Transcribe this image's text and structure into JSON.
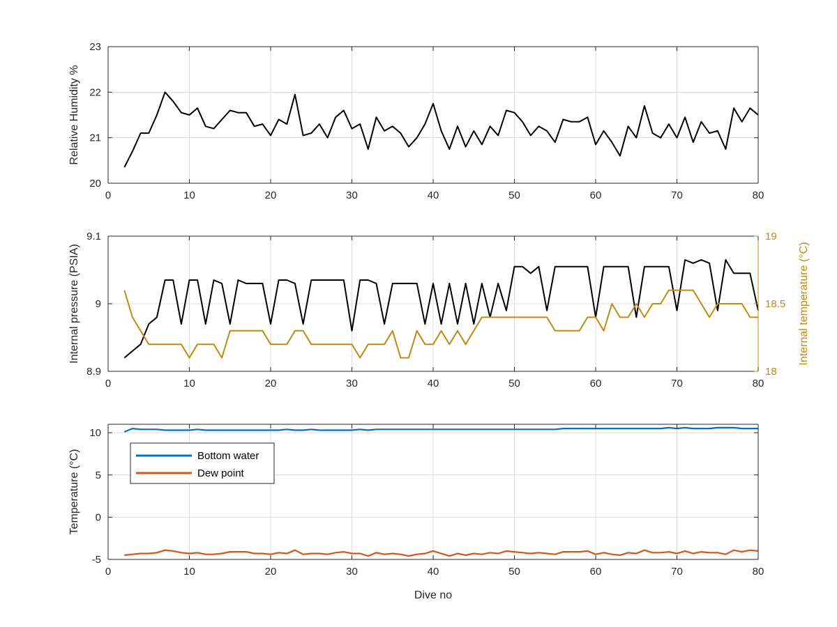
{
  "colors": {
    "axes": "#262626",
    "grid": "#dcdcdc",
    "black_series": "#000000",
    "internal_temperature": "#c08a10",
    "bottom_water": "#0072bd",
    "dew_point": "#d95319"
  },
  "chart_data": [
    {
      "type": "line",
      "panel": "humidity",
      "xlabel": "",
      "ylabel": "Relative Humidity %",
      "xlim": [
        0,
        80
      ],
      "ylim": [
        20,
        23
      ],
      "xticks": [
        0,
        10,
        20,
        30,
        40,
        50,
        60,
        70,
        80
      ],
      "yticks": [
        20,
        21,
        22,
        23
      ],
      "grid": true,
      "series": [
        {
          "color": "#000000",
          "x": [
            2,
            3,
            4,
            5,
            6,
            7,
            8,
            9,
            10,
            11,
            12,
            13,
            14,
            15,
            16,
            17,
            18,
            19,
            20,
            21,
            22,
            23,
            24,
            25,
            26,
            27,
            28,
            29,
            30,
            31,
            32,
            33,
            34,
            35,
            36,
            37,
            38,
            39,
            40,
            41,
            42,
            43,
            44,
            45,
            46,
            47,
            48,
            49,
            50,
            51,
            52,
            53,
            54,
            55,
            56,
            57,
            58,
            59,
            60,
            61,
            62,
            63,
            64,
            65,
            66,
            67,
            68,
            69,
            70,
            71,
            72,
            73,
            74,
            75,
            76,
            77,
            78,
            79,
            80
          ],
          "y": [
            20.35,
            20.7,
            21.1,
            21.1,
            21.5,
            22.0,
            21.8,
            21.55,
            21.5,
            21.65,
            21.25,
            21.2,
            21.4,
            21.6,
            21.55,
            21.55,
            21.25,
            21.3,
            21.05,
            21.4,
            21.3,
            21.95,
            21.05,
            21.1,
            21.3,
            21.0,
            21.45,
            21.6,
            21.2,
            21.3,
            20.75,
            21.45,
            21.15,
            21.25,
            21.1,
            20.8,
            21.0,
            21.3,
            21.75,
            21.15,
            20.75,
            21.25,
            20.8,
            21.15,
            20.85,
            21.25,
            21.05,
            21.6,
            21.55,
            21.35,
            21.05,
            21.25,
            21.15,
            20.9,
            21.4,
            21.35,
            21.35,
            21.45,
            20.85,
            21.15,
            20.9,
            20.6,
            21.25,
            21.0,
            21.7,
            21.1,
            21.0,
            21.3,
            21.0,
            21.45,
            20.9,
            21.35,
            21.1,
            21.15,
            20.75,
            21.65,
            21.35,
            21.65,
            21.5
          ]
        }
      ]
    },
    {
      "type": "line",
      "panel": "pressure",
      "xlabel": "",
      "ylabel": "Internal pressure (PSIA)",
      "y2label": "Internal temperature (°C)",
      "xlim": [
        0,
        80
      ],
      "ylim": [
        8.9,
        9.1
      ],
      "y2lim": [
        18,
        19
      ],
      "xticks": [
        0,
        10,
        20,
        30,
        40,
        50,
        60,
        70,
        80
      ],
      "yticks": [
        8.9,
        9,
        9.1
      ],
      "ytick_labels": [
        "8.9",
        "9",
        "9.1"
      ],
      "y2ticks": [
        18,
        18.5,
        19
      ],
      "y2tick_labels": [
        "18",
        "18.5",
        "19"
      ],
      "grid": true,
      "series": [
        {
          "color": "#000000",
          "axis": "left",
          "x": [
            2,
            3,
            4,
            5,
            6,
            7,
            8,
            9,
            10,
            11,
            12,
            13,
            14,
            15,
            16,
            17,
            18,
            19,
            20,
            21,
            22,
            23,
            24,
            25,
            26,
            27,
            28,
            29,
            30,
            31,
            32,
            33,
            34,
            35,
            36,
            37,
            38,
            39,
            40,
            41,
            42,
            43,
            44,
            45,
            46,
            47,
            48,
            49,
            50,
            51,
            52,
            53,
            54,
            55,
            56,
            57,
            58,
            59,
            60,
            61,
            62,
            63,
            64,
            65,
            66,
            67,
            68,
            69,
            70,
            71,
            72,
            73,
            74,
            75,
            76,
            77,
            78,
            79,
            80
          ],
          "y": [
            8.92,
            8.93,
            8.94,
            8.97,
            8.98,
            9.035,
            9.035,
            8.97,
            9.035,
            9.035,
            8.97,
            9.035,
            9.03,
            8.97,
            9.035,
            9.03,
            9.03,
            9.03,
            8.97,
            9.035,
            9.035,
            9.03,
            8.97,
            9.035,
            9.035,
            9.035,
            9.035,
            9.035,
            8.96,
            9.035,
            9.035,
            9.03,
            8.97,
            9.03,
            9.03,
            9.03,
            9.03,
            8.97,
            9.03,
            8.97,
            9.03,
            8.97,
            9.03,
            8.97,
            9.03,
            8.98,
            9.03,
            8.99,
            9.055,
            9.055,
            9.045,
            9.055,
            8.99,
            9.055,
            9.055,
            9.055,
            9.055,
            9.055,
            8.98,
            9.055,
            9.055,
            9.055,
            9.055,
            8.98,
            9.055,
            9.055,
            9.055,
            9.055,
            8.99,
            9.065,
            9.06,
            9.065,
            9.06,
            8.99,
            9.065,
            9.045,
            9.045,
            9.045,
            8.99
          ]
        },
        {
          "color": "#c08a10",
          "axis": "right",
          "x": [
            2,
            3,
            4,
            5,
            6,
            7,
            8,
            9,
            10,
            11,
            12,
            13,
            14,
            15,
            16,
            17,
            18,
            19,
            20,
            21,
            22,
            23,
            24,
            25,
            26,
            27,
            28,
            29,
            30,
            31,
            32,
            33,
            34,
            35,
            36,
            37,
            38,
            39,
            40,
            41,
            42,
            43,
            44,
            45,
            46,
            47,
            48,
            49,
            50,
            51,
            52,
            53,
            54,
            55,
            56,
            57,
            58,
            59,
            60,
            61,
            62,
            63,
            64,
            65,
            66,
            67,
            68,
            69,
            70,
            71,
            72,
            73,
            74,
            75,
            76,
            77,
            78,
            79,
            80
          ],
          "y": [
            18.6,
            18.4,
            18.3,
            18.2,
            18.2,
            18.2,
            18.2,
            18.2,
            18.1,
            18.2,
            18.2,
            18.2,
            18.1,
            18.3,
            18.3,
            18.3,
            18.3,
            18.3,
            18.2,
            18.2,
            18.2,
            18.3,
            18.3,
            18.2,
            18.2,
            18.2,
            18.2,
            18.2,
            18.2,
            18.1,
            18.2,
            18.2,
            18.2,
            18.3,
            18.1,
            18.1,
            18.3,
            18.2,
            18.2,
            18.3,
            18.2,
            18.3,
            18.2,
            18.3,
            18.4,
            18.4,
            18.4,
            18.4,
            18.4,
            18.4,
            18.4,
            18.4,
            18.4,
            18.3,
            18.3,
            18.3,
            18.3,
            18.4,
            18.4,
            18.3,
            18.5,
            18.4,
            18.4,
            18.5,
            18.4,
            18.5,
            18.5,
            18.6,
            18.6,
            18.6,
            18.6,
            18.5,
            18.4,
            18.5,
            18.5,
            18.5,
            18.5,
            18.4,
            18.4
          ]
        }
      ]
    },
    {
      "type": "line",
      "panel": "temperature",
      "xlabel": "Dive no",
      "ylabel": "Temperature (°C)",
      "xlim": [
        0,
        80
      ],
      "ylim": [
        -5,
        11
      ],
      "xticks": [
        0,
        10,
        20,
        30,
        40,
        50,
        60,
        70,
        80
      ],
      "yticks": [
        -5,
        0,
        5,
        10
      ],
      "grid": true,
      "legend": "top-left",
      "series": [
        {
          "name": "Bottom water",
          "color": "#0072bd",
          "x": [
            2,
            3,
            4,
            5,
            6,
            7,
            8,
            9,
            10,
            11,
            12,
            13,
            14,
            15,
            16,
            17,
            18,
            19,
            20,
            21,
            22,
            23,
            24,
            25,
            26,
            27,
            28,
            29,
            30,
            31,
            32,
            33,
            34,
            35,
            36,
            37,
            38,
            39,
            40,
            41,
            42,
            43,
            44,
            45,
            46,
            47,
            48,
            49,
            50,
            51,
            52,
            53,
            54,
            55,
            56,
            57,
            58,
            59,
            60,
            61,
            62,
            63,
            64,
            65,
            66,
            67,
            68,
            69,
            70,
            71,
            72,
            73,
            74,
            75,
            76,
            77,
            78,
            79,
            80
          ],
          "y": [
            10.1,
            10.5,
            10.4,
            10.4,
            10.4,
            10.3,
            10.3,
            10.3,
            10.3,
            10.4,
            10.3,
            10.3,
            10.3,
            10.3,
            10.3,
            10.3,
            10.3,
            10.3,
            10.3,
            10.3,
            10.4,
            10.3,
            10.3,
            10.4,
            10.3,
            10.3,
            10.3,
            10.3,
            10.3,
            10.4,
            10.3,
            10.4,
            10.4,
            10.4,
            10.4,
            10.4,
            10.4,
            10.4,
            10.4,
            10.4,
            10.4,
            10.4,
            10.4,
            10.4,
            10.4,
            10.4,
            10.4,
            10.4,
            10.4,
            10.4,
            10.4,
            10.4,
            10.4,
            10.4,
            10.5,
            10.5,
            10.5,
            10.5,
            10.5,
            10.5,
            10.5,
            10.5,
            10.5,
            10.5,
            10.5,
            10.5,
            10.5,
            10.6,
            10.5,
            10.6,
            10.5,
            10.5,
            10.5,
            10.6,
            10.6,
            10.6,
            10.5,
            10.5,
            10.5
          ]
        },
        {
          "name": "Dew point",
          "color": "#d95319",
          "x": [
            2,
            3,
            4,
            5,
            6,
            7,
            8,
            9,
            10,
            11,
            12,
            13,
            14,
            15,
            16,
            17,
            18,
            19,
            20,
            21,
            22,
            23,
            24,
            25,
            26,
            27,
            28,
            29,
            30,
            31,
            32,
            33,
            34,
            35,
            36,
            37,
            38,
            39,
            40,
            41,
            42,
            43,
            44,
            45,
            46,
            47,
            48,
            49,
            50,
            51,
            52,
            53,
            54,
            55,
            56,
            57,
            58,
            59,
            60,
            61,
            62,
            63,
            64,
            65,
            66,
            67,
            68,
            69,
            70,
            71,
            72,
            73,
            74,
            75,
            76,
            77,
            78,
            79,
            80
          ],
          "y": [
            -4.5,
            -4.4,
            -4.3,
            -4.3,
            -4.2,
            -3.9,
            -4.0,
            -4.2,
            -4.3,
            -4.2,
            -4.4,
            -4.4,
            -4.3,
            -4.1,
            -4.1,
            -4.1,
            -4.3,
            -4.3,
            -4.4,
            -4.2,
            -4.3,
            -3.9,
            -4.4,
            -4.3,
            -4.3,
            -4.4,
            -4.2,
            -4.1,
            -4.3,
            -4.3,
            -4.6,
            -4.2,
            -4.4,
            -4.3,
            -4.4,
            -4.6,
            -4.4,
            -4.3,
            -4.0,
            -4.3,
            -4.6,
            -4.3,
            -4.5,
            -4.3,
            -4.4,
            -4.2,
            -4.3,
            -4.0,
            -4.1,
            -4.2,
            -4.3,
            -4.2,
            -4.3,
            -4.4,
            -4.1,
            -4.1,
            -4.1,
            -4.0,
            -4.4,
            -4.2,
            -4.4,
            -4.5,
            -4.2,
            -4.3,
            -3.9,
            -4.2,
            -4.2,
            -4.1,
            -4.3,
            -4.0,
            -4.3,
            -4.1,
            -4.2,
            -4.2,
            -4.4,
            -3.9,
            -4.1,
            -3.9,
            -4.0
          ]
        }
      ]
    }
  ]
}
